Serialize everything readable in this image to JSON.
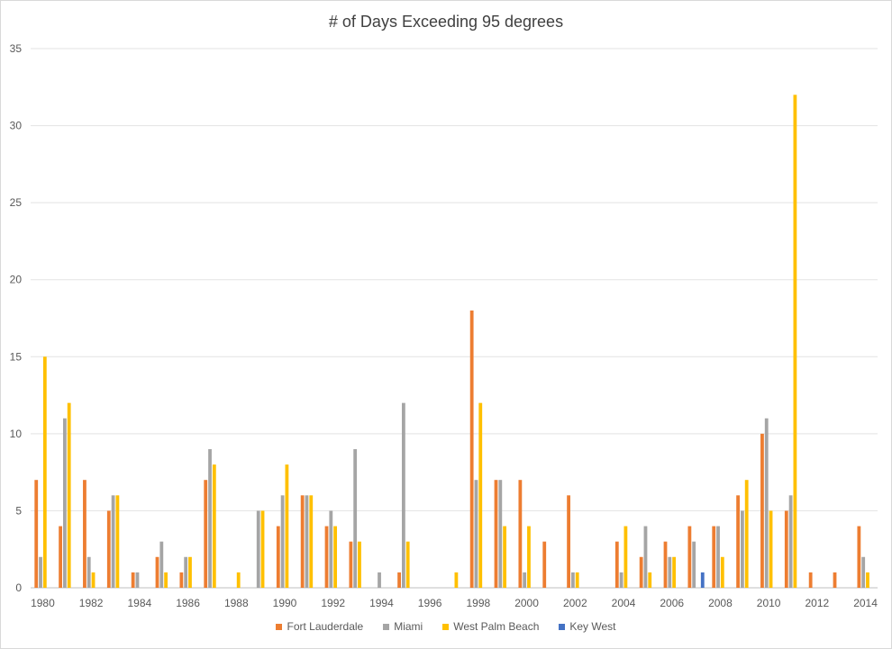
{
  "chart_data": {
    "type": "bar",
    "title": "# of Days Exceeding 95 degrees",
    "xlabel": "",
    "ylabel": "",
    "ylim": [
      0,
      35
    ],
    "yticks": [
      0,
      5,
      10,
      15,
      20,
      25,
      30,
      35
    ],
    "xtick_labels": [
      "1980",
      "1982",
      "1984",
      "1986",
      "1988",
      "1990",
      "1992",
      "1994",
      "1996",
      "1998",
      "2000",
      "2002",
      "2004",
      "2006",
      "2008",
      "2010",
      "2012",
      "2014"
    ],
    "categories": [
      1980,
      1981,
      1982,
      1983,
      1984,
      1985,
      1986,
      1987,
      1988,
      1989,
      1990,
      1991,
      1992,
      1993,
      1994,
      1995,
      1996,
      1997,
      1998,
      1999,
      2000,
      2001,
      2002,
      2003,
      2004,
      2005,
      2006,
      2007,
      2008,
      2009,
      2010,
      2011,
      2012,
      2013,
      2014
    ],
    "grid": true,
    "legend_position": "bottom",
    "series": [
      {
        "name": "Fort Lauderdale",
        "color": "#ed7d31",
        "values": [
          7,
          4,
          7,
          5,
          1,
          2,
          1,
          7,
          0,
          0,
          4,
          6,
          4,
          3,
          0,
          1,
          0,
          0,
          18,
          7,
          7,
          3,
          6,
          0,
          3,
          2,
          3,
          4,
          4,
          6,
          10,
          5,
          1,
          1,
          4
        ]
      },
      {
        "name": "Miami",
        "color": "#a5a5a5",
        "values": [
          2,
          11,
          2,
          6,
          1,
          3,
          2,
          9,
          0,
          5,
          6,
          6,
          5,
          9,
          1,
          12,
          0,
          0,
          7,
          7,
          1,
          0,
          1,
          0,
          1,
          4,
          2,
          3,
          4,
          5,
          11,
          6,
          0,
          0,
          2
        ]
      },
      {
        "name": "West Palm Beach",
        "color": "#ffc000",
        "values": [
          15,
          12,
          1,
          6,
          0,
          1,
          2,
          8,
          1,
          5,
          8,
          6,
          4,
          3,
          0,
          3,
          0,
          1,
          12,
          4,
          4,
          0,
          1,
          0,
          4,
          1,
          2,
          0,
          2,
          7,
          5,
          32,
          0,
          0,
          1
        ]
      },
      {
        "name": "Key West",
        "color": "#4472c4",
        "values": [
          0,
          0,
          0,
          0,
          0,
          0,
          0,
          0,
          0,
          0,
          0,
          0,
          0,
          0,
          0,
          0,
          0,
          0,
          0,
          0,
          0,
          0,
          0,
          0,
          0,
          0,
          0,
          1,
          0,
          0,
          0,
          0,
          0,
          0,
          0
        ]
      }
    ]
  }
}
